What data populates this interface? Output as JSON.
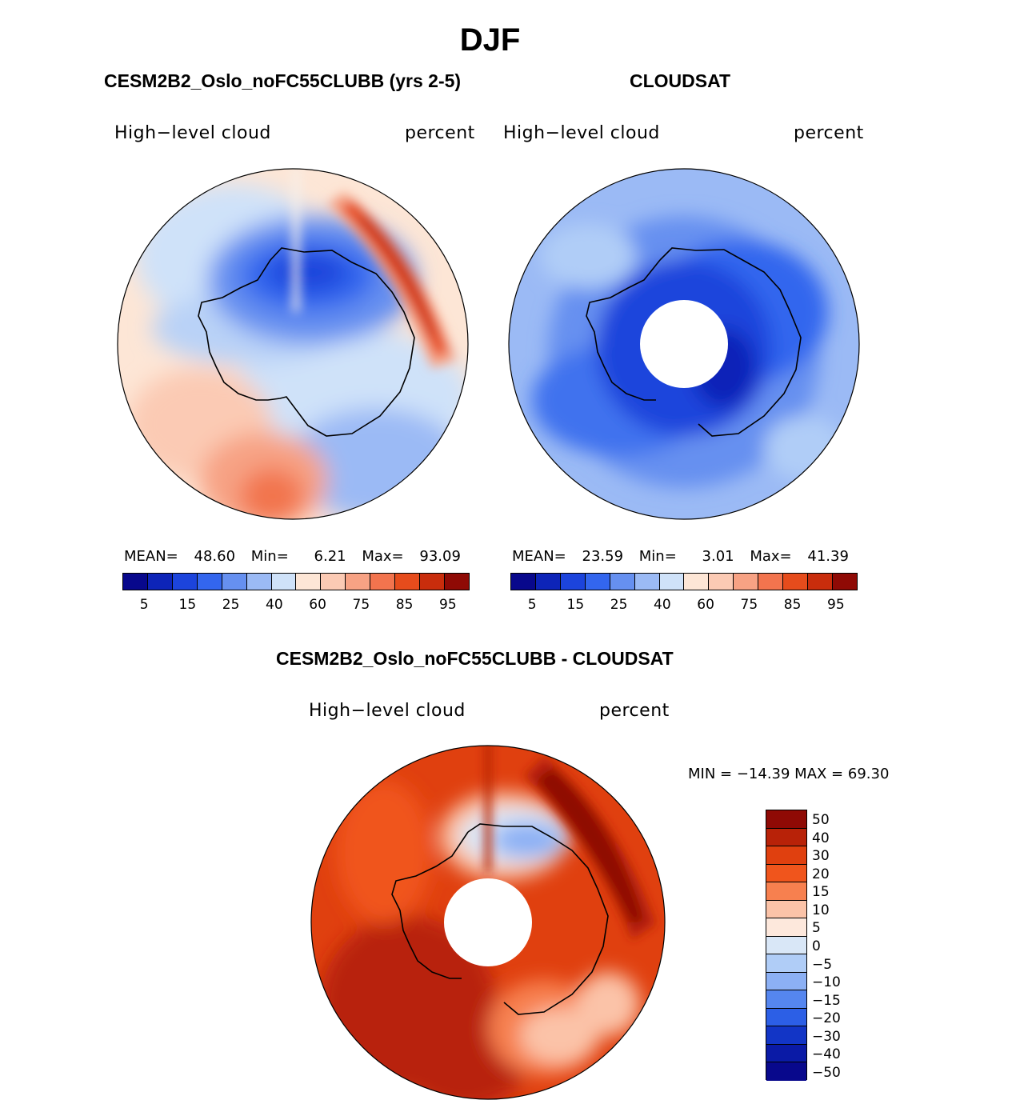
{
  "season": "DJF",
  "panels": {
    "model": {
      "title": "CESM2B2_Oslo_noFC55CLUBB (yrs 2-5)",
      "variable": "High−level cloud",
      "units": "percent",
      "mean_label": "MEAN=",
      "mean": "48.60",
      "min_label": "Min=",
      "min": "6.21",
      "max_label": "Max=",
      "max": "93.09"
    },
    "obs": {
      "title": "CLOUDSAT",
      "variable": "High−level cloud",
      "units": "percent",
      "mean_label": "MEAN=",
      "mean": "23.59",
      "min_label": "Min=",
      "min": "3.01",
      "max_label": "Max=",
      "max": "41.39"
    },
    "diff": {
      "title": "CESM2B2_Oslo_noFC55CLUBB - CLOUDSAT",
      "variable": "High−level cloud",
      "units": "percent",
      "minmax_text": "MIN = −14.39 MAX =   69.30"
    }
  },
  "colorbar_abs": {
    "colors": [
      "#08088c",
      "#0d24b8",
      "#1c44dc",
      "#3366ee",
      "#6690f0",
      "#9bbaf5",
      "#cfe2f9",
      "#fde6d6",
      "#fbcab4",
      "#f7a284",
      "#f2744e",
      "#e64c1c",
      "#c92d0c",
      "#8f0a05"
    ],
    "ticks": [
      "5",
      "15",
      "25",
      "40",
      "60",
      "75",
      "85",
      "95"
    ]
  },
  "colorbar_diff": {
    "colors": [
      "#8f0a05",
      "#b82208",
      "#e0400f",
      "#f0551c",
      "#f7804f",
      "#fbc3a8",
      "#fde8dc",
      "#d9e7f7",
      "#b0cdf7",
      "#8cb0f4",
      "#5586ef",
      "#2c5fe6",
      "#1235c6",
      "#0a1aa6",
      "#08088c"
    ],
    "ticks": [
      "50",
      "40",
      "30",
      "20",
      "15",
      "10",
      "5",
      "0",
      "−5",
      "−10",
      "−15",
      "−20",
      "−30",
      "−40",
      "−50"
    ]
  }
}
